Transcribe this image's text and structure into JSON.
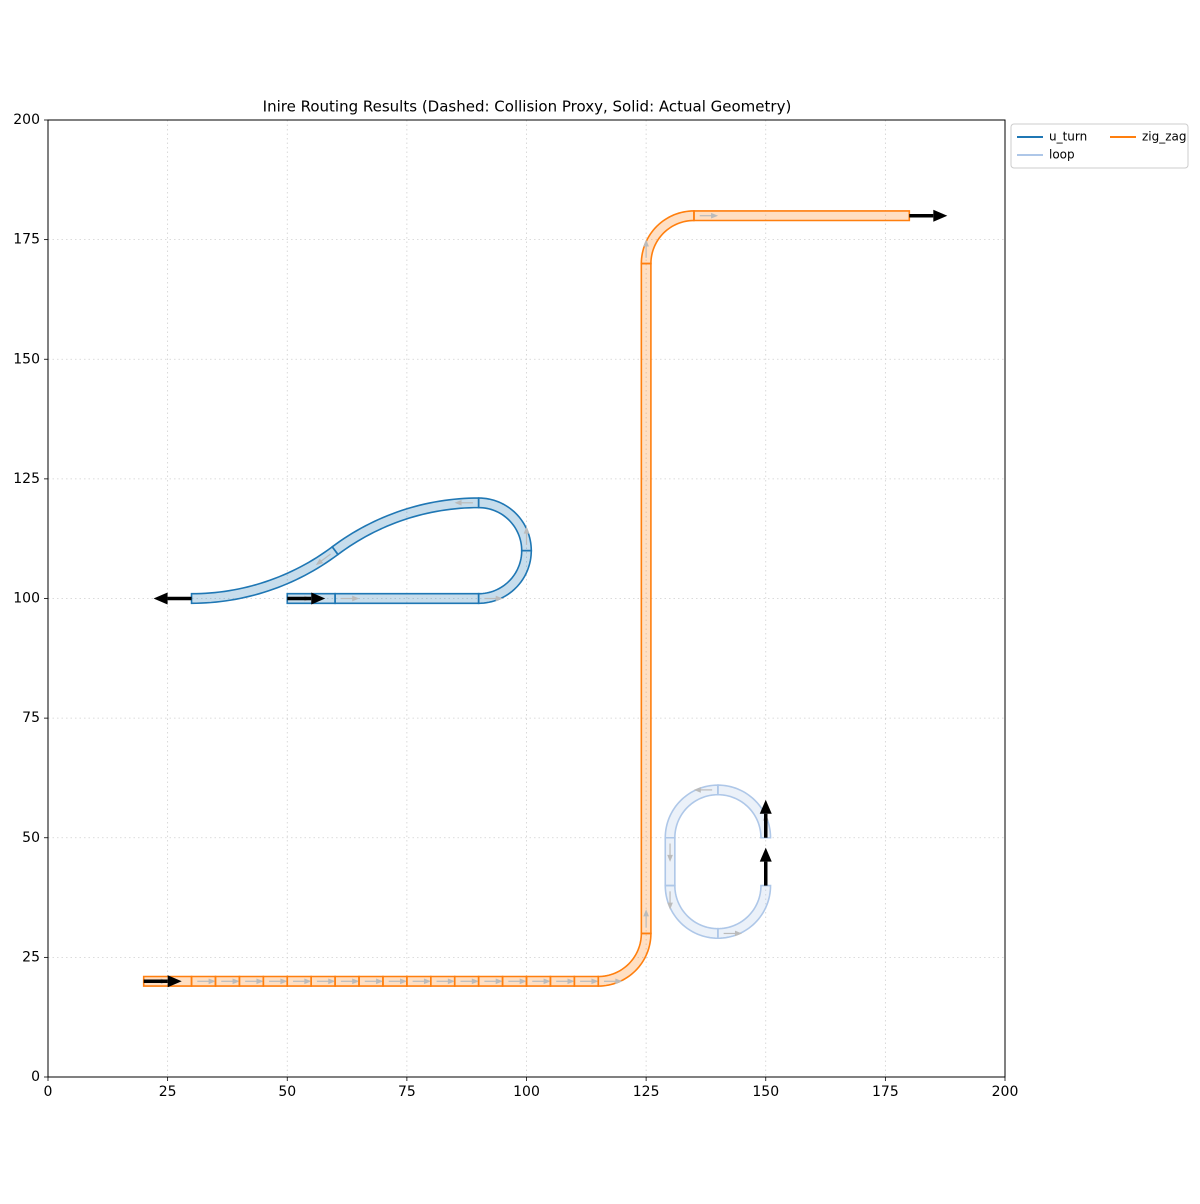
{
  "chart_data": {
    "type": "waveguide_route",
    "title": "Inire Routing Results (Dashed: Collision Proxy, Solid: Actual Geometry)",
    "xlim": [
      0,
      200
    ],
    "ylim": [
      0,
      200
    ],
    "xticks": [
      0,
      25,
      50,
      75,
      100,
      125,
      150,
      175,
      200
    ],
    "yticks": [
      0,
      25,
      50,
      75,
      100,
      125,
      150,
      175,
      200
    ],
    "grid": true,
    "legend": "outside upper right",
    "legend_columns": 2,
    "width": 2,
    "series": [
      {
        "name": "u_turn",
        "color": "#1f77b4",
        "segments": [
          {
            "x": [
              50,
              60
            ],
            "y": [
              100,
              100
            ]
          },
          {
            "x": [
              60,
              90
            ],
            "y": [
              100,
              100
            ]
          },
          {
            "center": [
              90,
              110
            ],
            "radius": 10,
            "angles": [
              -90,
              0
            ]
          },
          {
            "center": [
              90,
              110
            ],
            "radius": 10,
            "angles": [
              0,
              90
            ]
          },
          {
            "center": [
              90,
              70
            ],
            "radius": 50,
            "angles": [
              90,
              126.87
            ]
          },
          {
            "center": [
              30,
              150
            ],
            "radius": 50,
            "angles": [
              -53.13,
              -90
            ]
          }
        ],
        "ports": [
          {
            "x": 50,
            "y": 100,
            "angle": 0
          },
          {
            "x": 30,
            "y": 100,
            "angle": 180
          }
        ]
      },
      {
        "name": "loop",
        "color": "#aec7e8",
        "segments": [
          {
            "center": [
              140,
              50
            ],
            "radius": 10,
            "angles": [
              0,
              90
            ]
          },
          {
            "center": [
              140,
              50
            ],
            "radius": 10,
            "angles": [
              90,
              180
            ]
          },
          {
            "x": [
              130,
              130
            ],
            "y": [
              50,
              40
            ]
          },
          {
            "center": [
              140,
              40
            ],
            "radius": 10,
            "angles": [
              180,
              270
            ]
          },
          {
            "center": [
              140,
              40
            ],
            "radius": 10,
            "angles": [
              270,
              360
            ]
          }
        ],
        "ports": [
          {
            "x": 150,
            "y": 50,
            "angle": 90
          },
          {
            "x": 150,
            "y": 40,
            "angle": 90
          }
        ]
      },
      {
        "name": "zig_zag",
        "color": "#ff7f0e",
        "segments": [
          {
            "x": [
              20,
              30
            ],
            "y": [
              20,
              20
            ]
          },
          {
            "x": [
              30,
              35
            ],
            "y": [
              20,
              20
            ]
          },
          {
            "x": [
              35,
              40
            ],
            "y": [
              20,
              20
            ]
          },
          {
            "x": [
              40,
              45
            ],
            "y": [
              20,
              20
            ]
          },
          {
            "x": [
              45,
              50
            ],
            "y": [
              20,
              20
            ]
          },
          {
            "x": [
              50,
              55
            ],
            "y": [
              20,
              20
            ]
          },
          {
            "x": [
              55,
              60
            ],
            "y": [
              20,
              20
            ]
          },
          {
            "x": [
              60,
              65
            ],
            "y": [
              20,
              20
            ]
          },
          {
            "x": [
              65,
              70
            ],
            "y": [
              20,
              20
            ]
          },
          {
            "x": [
              70,
              75
            ],
            "y": [
              20,
              20
            ]
          },
          {
            "x": [
              75,
              80
            ],
            "y": [
              20,
              20
            ]
          },
          {
            "x": [
              80,
              85
            ],
            "y": [
              20,
              20
            ]
          },
          {
            "x": [
              85,
              90
            ],
            "y": [
              20,
              20
            ]
          },
          {
            "x": [
              90,
              95
            ],
            "y": [
              20,
              20
            ]
          },
          {
            "x": [
              95,
              100
            ],
            "y": [
              20,
              20
            ]
          },
          {
            "x": [
              100,
              105
            ],
            "y": [
              20,
              20
            ]
          },
          {
            "x": [
              105,
              110
            ],
            "y": [
              20,
              20
            ]
          },
          {
            "x": [
              110,
              115
            ],
            "y": [
              20,
              20
            ]
          },
          {
            "center": [
              115,
              30
            ],
            "radius": 10,
            "angles": [
              -90,
              0
            ]
          },
          {
            "x": [
              125,
              125
            ],
            "y": [
              30,
              170
            ]
          },
          {
            "center": [
              135,
              170
            ],
            "radius": 10,
            "angles": [
              180,
              90
            ]
          },
          {
            "x": [
              135,
              180
            ],
            "y": [
              180,
              180
            ]
          }
        ],
        "ports": [
          {
            "x": 20,
            "y": 20,
            "angle": 0
          },
          {
            "x": 180,
            "y": 180,
            "angle": 0
          }
        ]
      }
    ]
  }
}
